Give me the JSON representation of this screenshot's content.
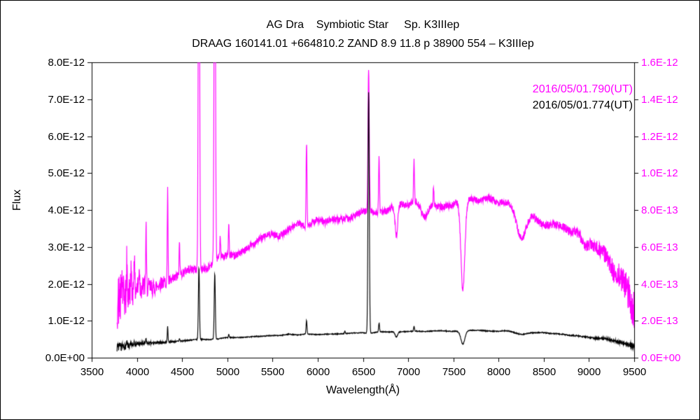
{
  "frame": {
    "background": "#ffffff",
    "border_color": "#000000"
  },
  "titles": {
    "line1": "AG Dra    Symbiotic Star     Sp. K3IIIep",
    "line2": "DRAAG 160141.01 +664810.2 ZAND 8.9 11.8 p 38900 554 – K3IIIep"
  },
  "legend": [
    {
      "label": "2016/05/01.790(UT)",
      "color": "#ff00ff"
    },
    {
      "label": "2016/05/01.774(UT)",
      "color": "#000000"
    }
  ],
  "chart_data": {
    "type": "line",
    "title": "AG Dra    Symbiotic Star     Sp. K3IIIep",
    "subtitle": "DRAAG 160141.01 +664810.2 ZAND 8.9 11.8 p 38900 554 – K3IIIep",
    "xlabel": "Wavelength(Å)",
    "ylabel_left": "Flux",
    "xlim": [
      3500,
      9500
    ],
    "x_ticks": [
      3500,
      4000,
      4500,
      5000,
      5500,
      6000,
      6500,
      7000,
      7500,
      8000,
      8500,
      9000,
      9500
    ],
    "x_tick_labels": [
      "3500",
      "4000",
      "4500",
      "5000",
      "5500",
      "6000",
      "6500",
      "7000",
      "7500",
      "8000",
      "8500",
      "9000",
      "9500"
    ],
    "left_axis": {
      "lim": [
        0,
        8e-12
      ],
      "tick_labels": [
        "0.0E+00",
        "1.0E-12",
        "2.0E-12",
        "3.0E-12",
        "4.0E-12",
        "5.0E-12",
        "6.0E-12",
        "7.0E-12",
        "8.0E-12"
      ],
      "color": "#000000"
    },
    "right_axis": {
      "lim": [
        0,
        1.6e-12
      ],
      "tick_labels": [
        "0.0E+00",
        "2.0E-13",
        "4.0E-13",
        "6.0E-13",
        "8.0E-13",
        "1.0E-12",
        "1.2E-12",
        "1.4E-12",
        "1.6E-12"
      ],
      "color": "#ff00ff"
    },
    "grid": false,
    "legend_position": "upper-right",
    "series": [
      {
        "name": "2016/05/01.790(UT)",
        "color": "#ff00ff",
        "axis": "right",
        "unit": 1e-13,
        "seed": 42,
        "x_range": [
          3780,
          9520
        ],
        "continuum": [
          [
            3780,
            3.0
          ],
          [
            3900,
            3.4
          ],
          [
            4100,
            3.8
          ],
          [
            4300,
            4.1
          ],
          [
            4500,
            4.5
          ],
          [
            4700,
            4.8
          ],
          [
            4900,
            5.2
          ],
          [
            5100,
            5.7
          ],
          [
            5300,
            6.2
          ],
          [
            5500,
            6.7
          ],
          [
            5700,
            7.0
          ],
          [
            5900,
            7.3
          ],
          [
            6100,
            7.6
          ],
          [
            6300,
            7.7
          ],
          [
            6500,
            7.8
          ],
          [
            6700,
            8.1
          ],
          [
            6900,
            8.2
          ],
          [
            7100,
            8.3
          ],
          [
            7300,
            8.3
          ],
          [
            7500,
            8.5
          ],
          [
            7700,
            8.6
          ],
          [
            7900,
            8.6
          ],
          [
            8100,
            8.5
          ],
          [
            8300,
            8.0
          ],
          [
            8500,
            7.3
          ],
          [
            8700,
            7.3
          ],
          [
            8900,
            6.7
          ],
          [
            9100,
            5.8
          ],
          [
            9300,
            4.7
          ],
          [
            9450,
            3.3
          ],
          [
            9520,
            2.2
          ]
        ],
        "lines": [
          [
            3835,
            1.3,
            4
          ],
          [
            3889,
            1.8,
            4
          ],
          [
            3934,
            1.3,
            4
          ],
          [
            3970,
            2.2,
            4
          ],
          [
            4026,
            1.3,
            4
          ],
          [
            4101,
            3.2,
            4
          ],
          [
            4340,
            5.2,
            4
          ],
          [
            4471,
            1.8,
            4
          ],
          [
            4686,
            25,
            7
          ],
          [
            4861,
            25,
            7
          ],
          [
            4922,
            1.2,
            4
          ],
          [
            5016,
            1.8,
            4
          ],
          [
            5876,
            4.6,
            5
          ],
          [
            6563,
            7.8,
            7
          ],
          [
            6678,
            3.0,
            5
          ],
          [
            7065,
            2.2,
            5
          ],
          [
            7281,
            0.9,
            5
          ],
          [
            6870,
            -1.7,
            14
          ],
          [
            7180,
            -0.6,
            35
          ],
          [
            7605,
            -4.9,
            22
          ],
          [
            8250,
            -1.8,
            55
          ],
          [
            8950,
            -0.5,
            40
          ]
        ],
        "noise": {
          "base": 0.18,
          "blue": 1.4,
          "red": 1.1,
          "scale": 250,
          "lf": 0.25
        }
      },
      {
        "name": "2016/05/01.774(UT)",
        "color": "#000000",
        "axis": "left",
        "unit": 1e-12,
        "seed": 7,
        "x_range": [
          3780,
          9520
        ],
        "continuum": [
          [
            3780,
            0.3
          ],
          [
            3900,
            0.33
          ],
          [
            4100,
            0.38
          ],
          [
            4300,
            0.42
          ],
          [
            4500,
            0.46
          ],
          [
            4700,
            0.49
          ],
          [
            4900,
            0.52
          ],
          [
            5100,
            0.55
          ],
          [
            5300,
            0.58
          ],
          [
            5500,
            0.6
          ],
          [
            5700,
            0.62
          ],
          [
            5900,
            0.63
          ],
          [
            6100,
            0.65
          ],
          [
            6300,
            0.66
          ],
          [
            6500,
            0.67
          ],
          [
            6700,
            0.69
          ],
          [
            6900,
            0.7
          ],
          [
            7100,
            0.7
          ],
          [
            7300,
            0.71
          ],
          [
            7500,
            0.73
          ],
          [
            7700,
            0.75
          ],
          [
            7900,
            0.74
          ],
          [
            8100,
            0.72
          ],
          [
            8300,
            0.69
          ],
          [
            8500,
            0.66
          ],
          [
            8700,
            0.63
          ],
          [
            8900,
            0.59
          ],
          [
            9100,
            0.53
          ],
          [
            9300,
            0.46
          ],
          [
            9520,
            0.3
          ]
        ],
        "lines": [
          [
            3889,
            0.08,
            4
          ],
          [
            3970,
            0.1,
            4
          ],
          [
            4101,
            0.13,
            4
          ],
          [
            4340,
            0.42,
            4
          ],
          [
            4471,
            0.08,
            4
          ],
          [
            4686,
            1.95,
            6
          ],
          [
            4861,
            1.78,
            6
          ],
          [
            5016,
            0.09,
            4
          ],
          [
            5876,
            0.37,
            5
          ],
          [
            6300,
            0.07,
            4
          ],
          [
            6563,
            6.55,
            7
          ],
          [
            6678,
            0.24,
            5
          ],
          [
            7065,
            0.14,
            5
          ],
          [
            6870,
            -0.14,
            14
          ],
          [
            7605,
            -0.36,
            22
          ],
          [
            8250,
            -0.06,
            55
          ]
        ],
        "noise": {
          "base": 0.012,
          "blue": 0.11,
          "red": 0.08,
          "scale": 250,
          "lf": 0.02
        }
      }
    ]
  }
}
